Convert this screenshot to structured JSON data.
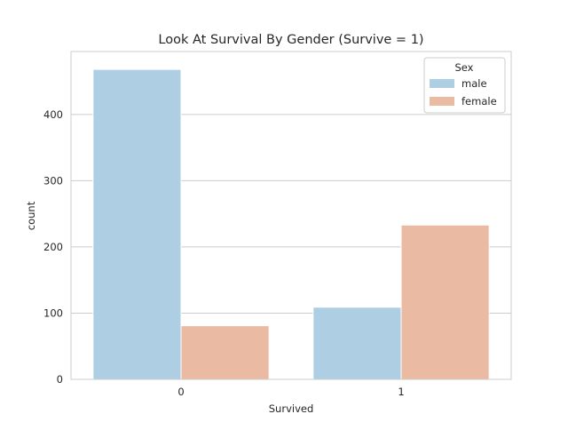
{
  "chart_data": {
    "type": "bar",
    "title": "Look At Survival By Gender (Survive = 1)",
    "xlabel": "Survived",
    "ylabel": "count",
    "categories": [
      "0",
      "1"
    ],
    "series": [
      {
        "name": "male",
        "values": [
          468,
          109
        ],
        "color": "#aecfe3"
      },
      {
        "name": "female",
        "values": [
          81,
          233
        ],
        "color": "#ebbaa3"
      }
    ],
    "ylim": [
      0,
      495
    ],
    "yticks": [
      0,
      100,
      200,
      300,
      400
    ],
    "grid": true,
    "legend": {
      "title": "Sex",
      "placement": "top-right"
    }
  }
}
